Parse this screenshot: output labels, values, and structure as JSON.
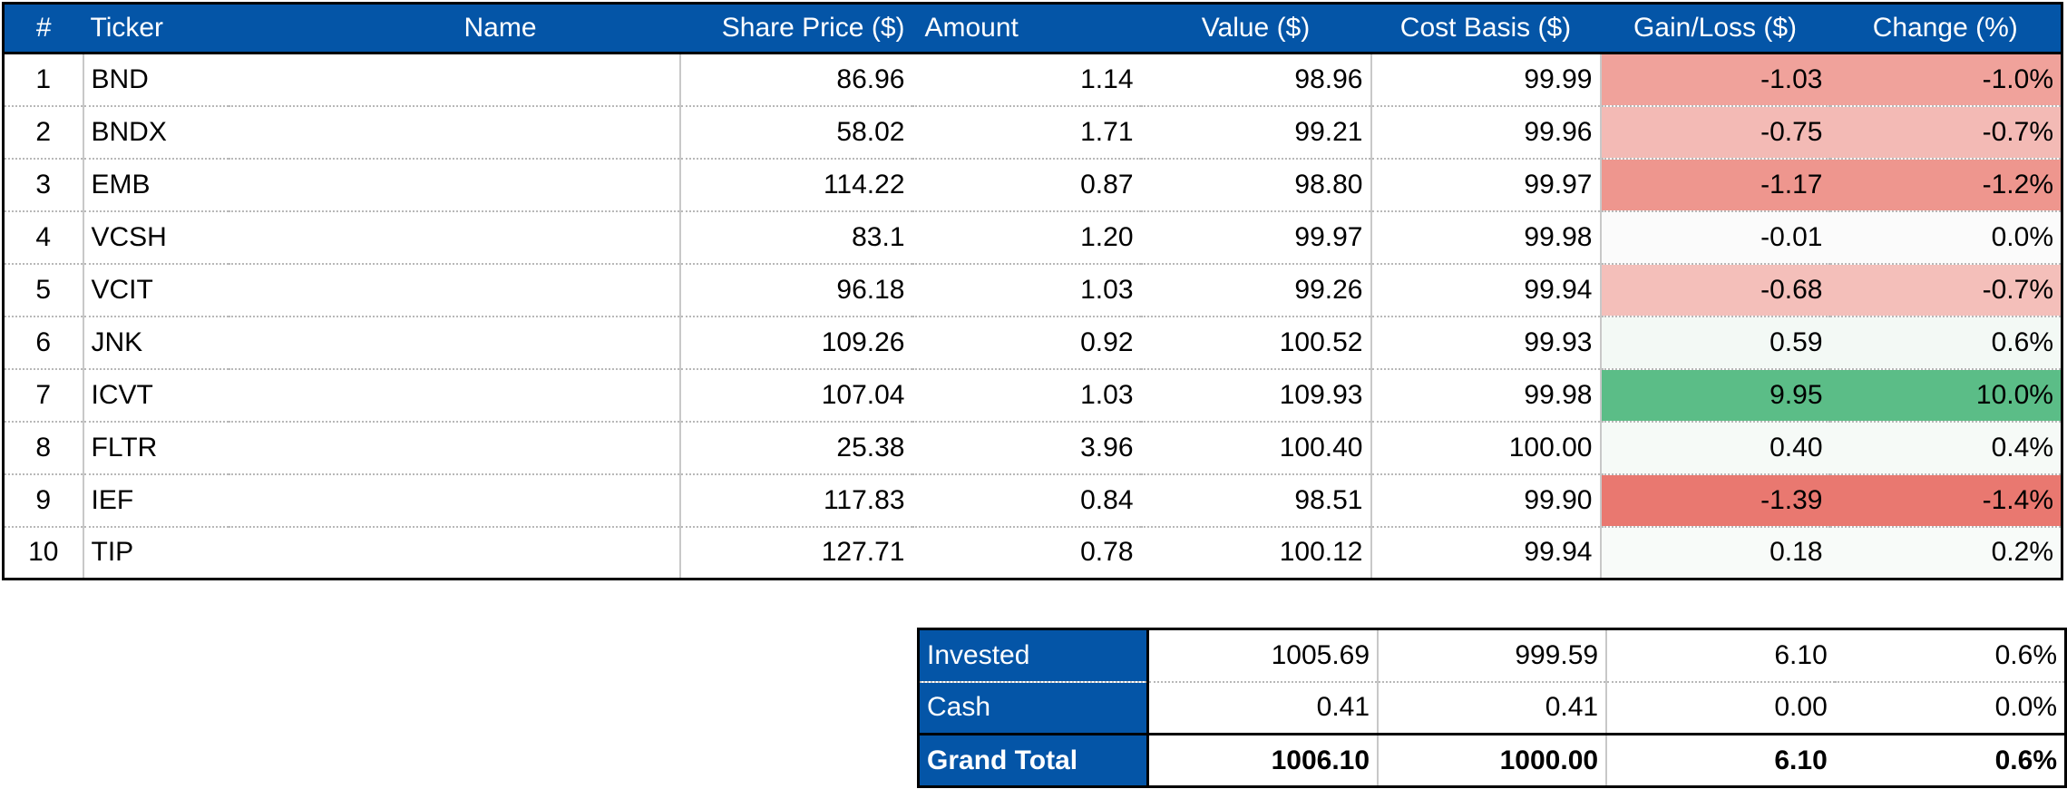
{
  "headers": {
    "num": "#",
    "ticker": "Ticker",
    "name": "Name",
    "share_price": "Share Price ($)",
    "amount": "Amount",
    "value": "Value ($)",
    "cost_basis": "Cost Basis ($)",
    "gain_loss": "Gain/Loss ($)",
    "change": "Change (%)"
  },
  "rows": [
    {
      "num": "1",
      "ticker": "BND",
      "name": "",
      "share_price": "86.96",
      "amount": "1.14",
      "value": "98.96",
      "cost_basis": "99.99",
      "gain_loss": "-1.03",
      "change": "-1.0%",
      "color": "#f0a29b"
    },
    {
      "num": "2",
      "ticker": "BNDX",
      "name": "",
      "share_price": "58.02",
      "amount": "1.71",
      "value": "99.21",
      "cost_basis": "99.96",
      "gain_loss": "-0.75",
      "change": "-0.7%",
      "color": "#f3bab5"
    },
    {
      "num": "3",
      "ticker": "EMB",
      "name": "",
      "share_price": "114.22",
      "amount": "0.87",
      "value": "98.80",
      "cost_basis": "99.97",
      "gain_loss": "-1.17",
      "change": "-1.2%",
      "color": "#ee968e"
    },
    {
      "num": "4",
      "ticker": "VCSH",
      "name": "",
      "share_price": "83.1",
      "amount": "1.20",
      "value": "99.97",
      "cost_basis": "99.98",
      "gain_loss": "-0.01",
      "change": "0.0%",
      "color": "#fbfbfb"
    },
    {
      "num": "5",
      "ticker": "VCIT",
      "name": "",
      "share_price": "96.18",
      "amount": "1.03",
      "value": "99.26",
      "cost_basis": "99.94",
      "gain_loss": "-0.68",
      "change": "-0.7%",
      "color": "#f4bfba"
    },
    {
      "num": "6",
      "ticker": "JNK",
      "name": "",
      "share_price": "109.26",
      "amount": "0.92",
      "value": "100.52",
      "cost_basis": "99.93",
      "gain_loss": "0.59",
      "change": "0.6%",
      "color": "#f3f9f5"
    },
    {
      "num": "7",
      "ticker": "ICVT",
      "name": "",
      "share_price": "107.04",
      "amount": "1.03",
      "value": "109.93",
      "cost_basis": "99.98",
      "gain_loss": "9.95",
      "change": "10.0%",
      "color": "#5bbd87"
    },
    {
      "num": "8",
      "ticker": "FLTR",
      "name": "",
      "share_price": "25.38",
      "amount": "3.96",
      "value": "100.40",
      "cost_basis": "100.00",
      "gain_loss": "0.40",
      "change": "0.4%",
      "color": "#f6faf7"
    },
    {
      "num": "9",
      "ticker": "IEF",
      "name": "",
      "share_price": "117.83",
      "amount": "0.84",
      "value": "98.51",
      "cost_basis": "99.90",
      "gain_loss": "-1.39",
      "change": "-1.4%",
      "color": "#e97870"
    },
    {
      "num": "10",
      "ticker": "TIP",
      "name": "",
      "share_price": "127.71",
      "amount": "0.78",
      "value": "100.12",
      "cost_basis": "99.94",
      "gain_loss": "0.18",
      "change": "0.2%",
      "color": "#f8fbf9"
    }
  ],
  "summary": [
    {
      "label": "Invested",
      "value": "1005.69",
      "cost_basis": "999.59",
      "gain_loss": "6.10",
      "change": "0.6%",
      "total": false
    },
    {
      "label": "Cash",
      "value": "0.41",
      "cost_basis": "0.41",
      "gain_loss": "0.00",
      "change": "0.0%",
      "total": false
    },
    {
      "label": "Grand Total",
      "value": "1006.10",
      "cost_basis": "1000.00",
      "gain_loss": "6.10",
      "change": "0.6%",
      "total": true
    }
  ],
  "colors": {
    "header_bg": "#0455a7",
    "header_text": "#ffffff"
  }
}
